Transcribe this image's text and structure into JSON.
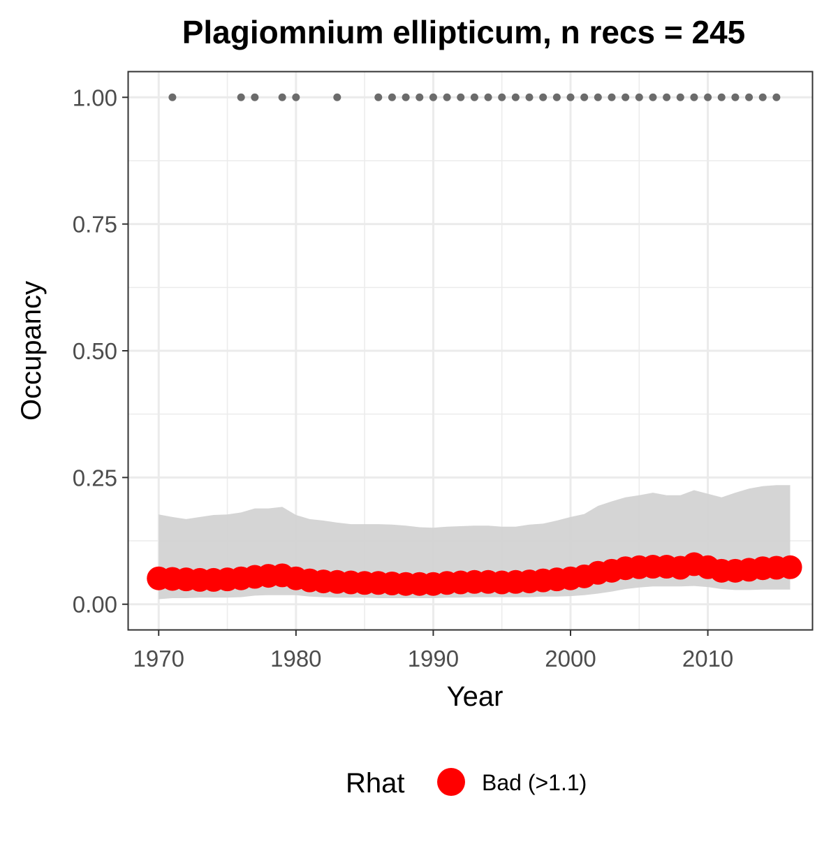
{
  "chart_data": {
    "type": "line",
    "title": "Plagiomnium ellipticum, n recs = 245",
    "xlabel": "Year",
    "ylabel": "Occupancy",
    "xlim": [
      1967.8,
      2017.6
    ],
    "ylim": [
      -0.05,
      1.05
    ],
    "x_ticks": [
      1970,
      1980,
      1990,
      2000,
      2010
    ],
    "y_ticks": [
      0.0,
      0.25,
      0.5,
      0.75,
      1.0
    ],
    "x_tick_labels": [
      "1970",
      "1980",
      "1990",
      "2000",
      "2010"
    ],
    "y_tick_labels": [
      "0.00",
      "0.25",
      "0.50",
      "0.75",
      "1.00"
    ],
    "grid": true,
    "legend": {
      "title": "Rhat",
      "position": "bottom",
      "entries": [
        {
          "label": "Bad (>1.1)",
          "color": "#ff0000"
        }
      ]
    },
    "colors": {
      "estimate": "#ff0000",
      "ribbon": "#d3d3d3",
      "records": "#6b6b6b",
      "grid": "#ebebeb",
      "border": "#333333"
    },
    "x": [
      1970,
      1971,
      1972,
      1973,
      1974,
      1975,
      1976,
      1977,
      1978,
      1979,
      1980,
      1981,
      1982,
      1983,
      1984,
      1985,
      1986,
      1987,
      1988,
      1989,
      1990,
      1991,
      1992,
      1993,
      1994,
      1995,
      1996,
      1997,
      1998,
      1999,
      2000,
      2001,
      2002,
      2003,
      2004,
      2005,
      2006,
      2007,
      2008,
      2009,
      2010,
      2011,
      2012,
      2013,
      2014,
      2015,
      2016
    ],
    "series": [
      {
        "name": "Bad (>1.1)",
        "values": [
          0.051,
          0.05,
          0.049,
          0.048,
          0.048,
          0.049,
          0.051,
          0.054,
          0.056,
          0.057,
          0.051,
          0.047,
          0.045,
          0.044,
          0.043,
          0.042,
          0.042,
          0.041,
          0.04,
          0.04,
          0.04,
          0.042,
          0.043,
          0.044,
          0.044,
          0.043,
          0.044,
          0.045,
          0.047,
          0.049,
          0.051,
          0.055,
          0.062,
          0.066,
          0.071,
          0.073,
          0.074,
          0.074,
          0.072,
          0.079,
          0.073,
          0.066,
          0.066,
          0.068,
          0.071,
          0.072,
          0.073
        ]
      }
    ],
    "ribbon": {
      "lower": [
        0.01,
        0.012,
        0.012,
        0.013,
        0.013,
        0.013,
        0.014,
        0.017,
        0.018,
        0.018,
        0.018,
        0.015,
        0.014,
        0.013,
        0.013,
        0.013,
        0.012,
        0.012,
        0.012,
        0.012,
        0.012,
        0.013,
        0.013,
        0.014,
        0.014,
        0.014,
        0.014,
        0.014,
        0.015,
        0.015,
        0.016,
        0.018,
        0.021,
        0.025,
        0.03,
        0.033,
        0.035,
        0.035,
        0.035,
        0.036,
        0.034,
        0.03,
        0.028,
        0.028,
        0.029,
        0.029,
        0.029
      ],
      "upper": [
        0.177,
        0.172,
        0.168,
        0.172,
        0.176,
        0.177,
        0.181,
        0.189,
        0.189,
        0.192,
        0.176,
        0.168,
        0.165,
        0.161,
        0.158,
        0.158,
        0.158,
        0.157,
        0.155,
        0.152,
        0.151,
        0.153,
        0.154,
        0.155,
        0.155,
        0.153,
        0.153,
        0.157,
        0.159,
        0.165,
        0.172,
        0.178,
        0.194,
        0.203,
        0.211,
        0.215,
        0.22,
        0.215,
        0.215,
        0.225,
        0.218,
        0.211,
        0.22,
        0.228,
        0.233,
        0.235,
        0.235
      ]
    },
    "record_years": [
      1971,
      1976,
      1977,
      1979,
      1980,
      1983,
      1986,
      1987,
      1988,
      1989,
      1990,
      1991,
      1992,
      1993,
      1994,
      1995,
      1996,
      1997,
      1998,
      1999,
      2000,
      2001,
      2002,
      2003,
      2004,
      2005,
      2006,
      2007,
      2008,
      2009,
      2010,
      2011,
      2012,
      2013,
      2014,
      2015
    ],
    "record_value": 1.0
  }
}
